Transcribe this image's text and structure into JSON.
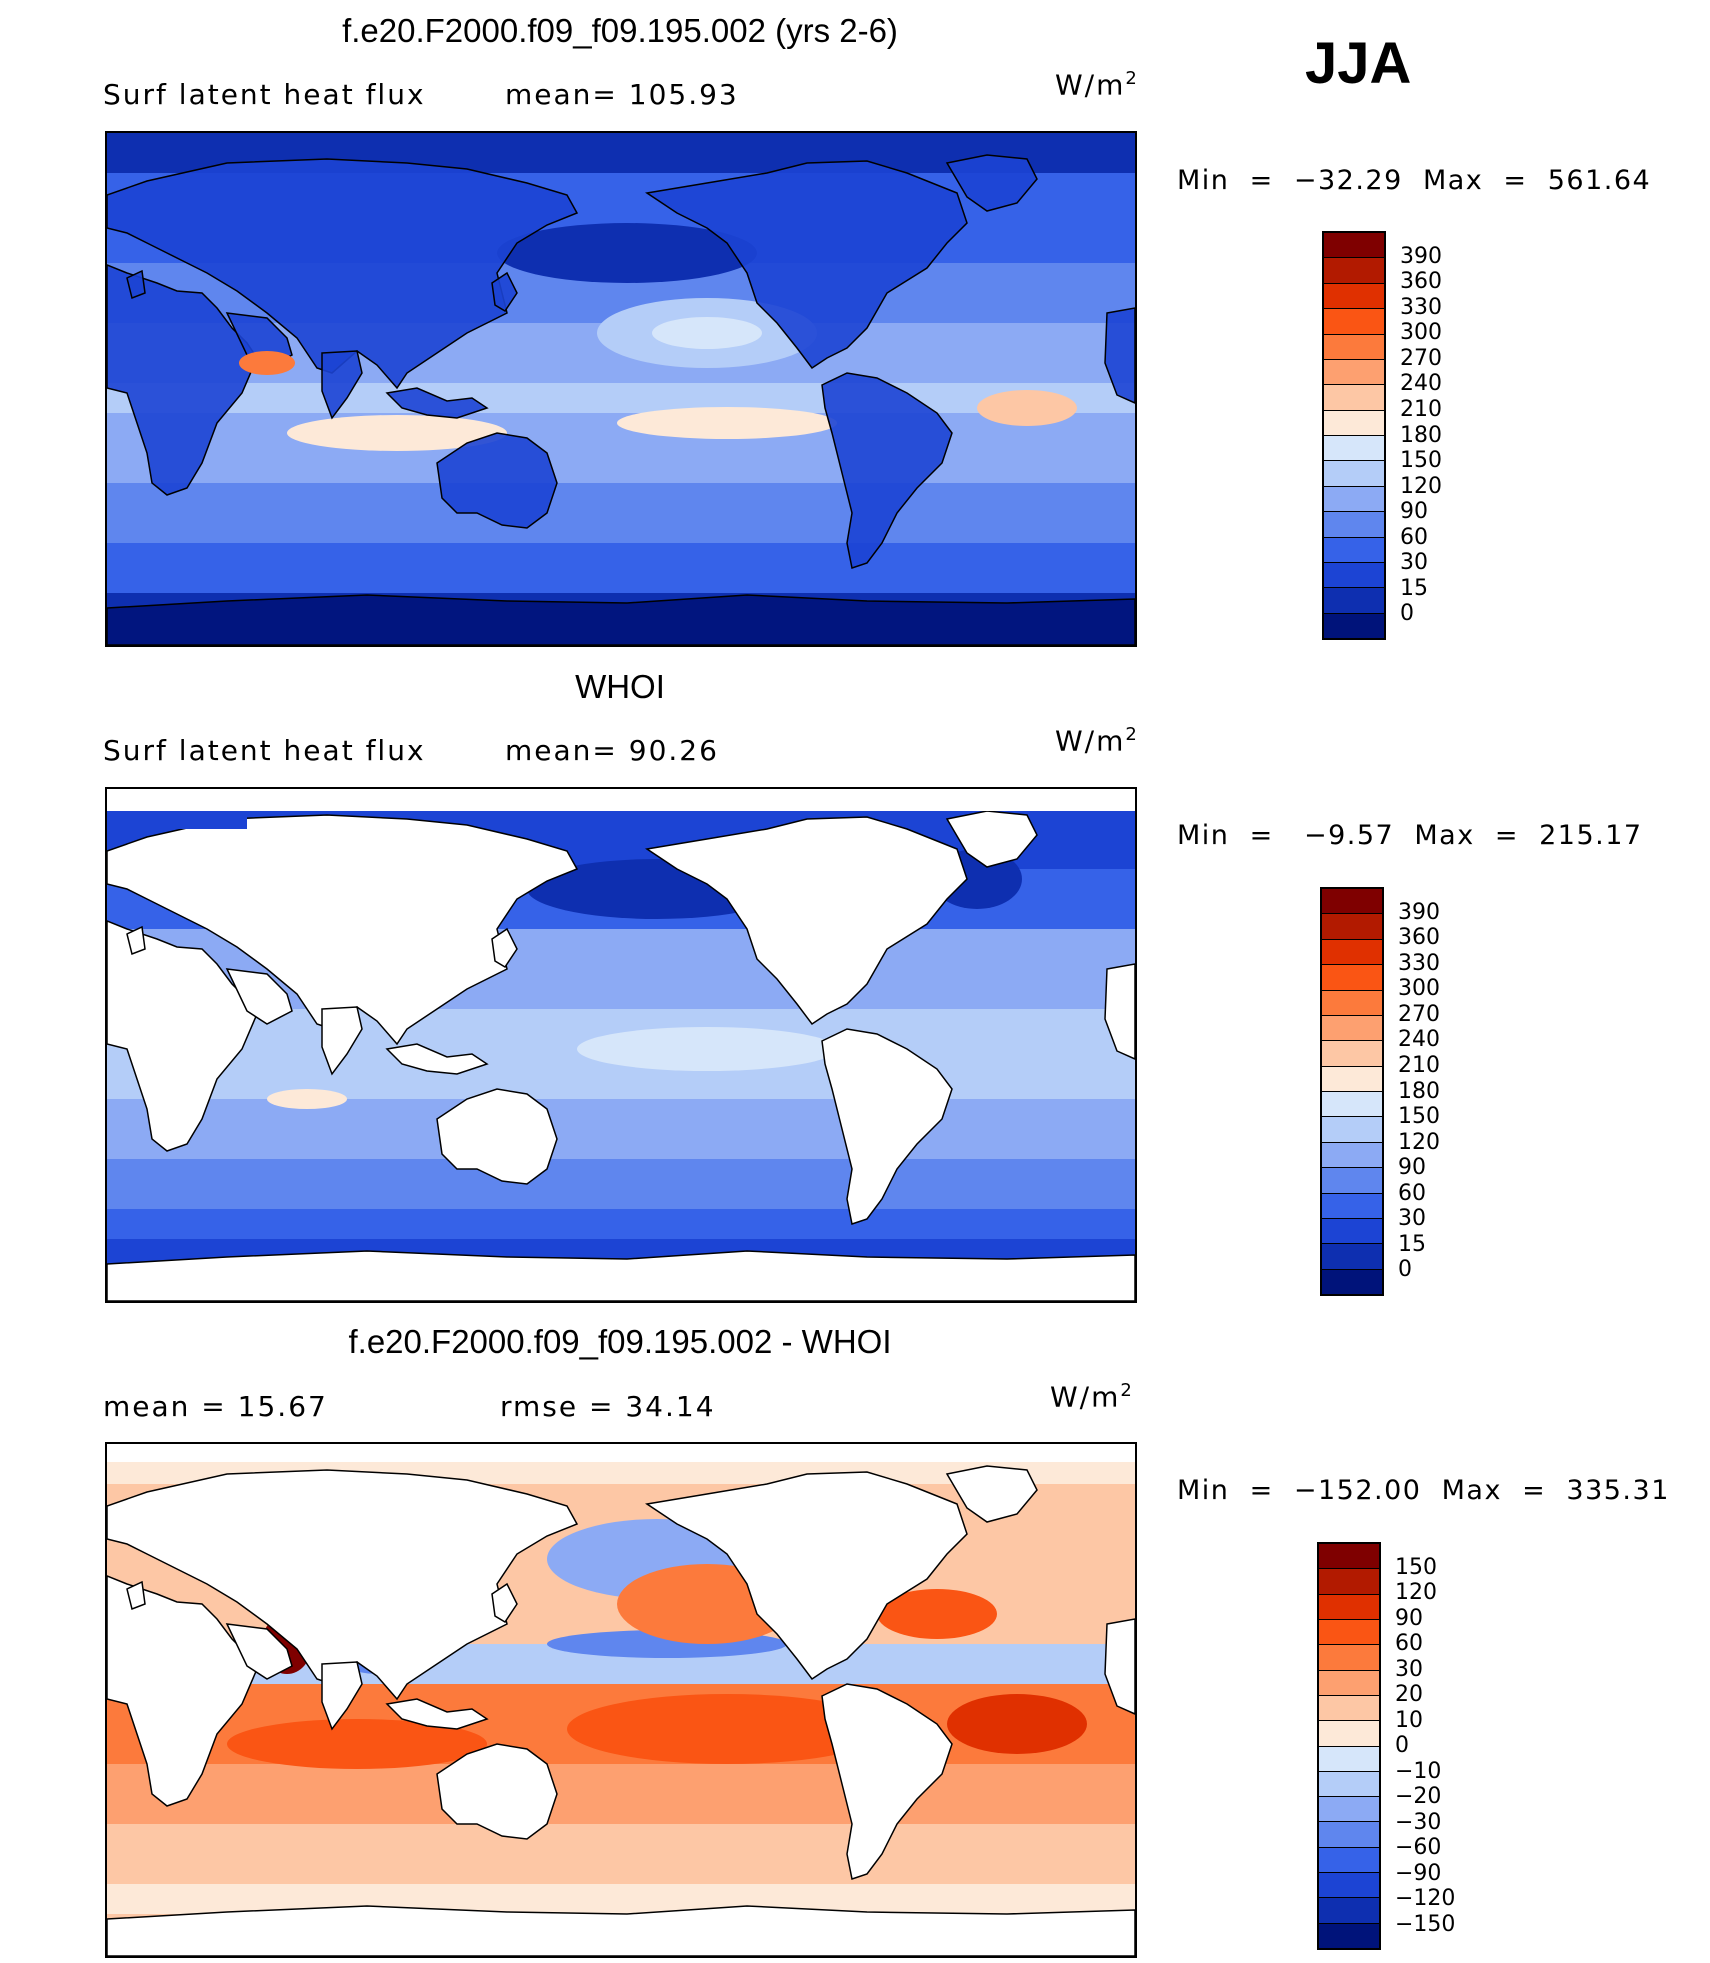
{
  "season": "JJA",
  "panels": [
    {
      "title": "f.e20.F2000.f09_f09.195.002 (yrs 2-6)",
      "subtitle_left": "Surf  latent  heat  flux",
      "subtitle_mid": "mean=  105.93",
      "units": "W/m",
      "units_exp": "2",
      "minmax": "Min  =  −32.29  Max  =  561.64",
      "kind": "model"
    },
    {
      "title": "WHOI",
      "subtitle_left": "Surf  latent  heat  flux",
      "subtitle_mid": "mean=   90.26",
      "units": "W/m",
      "units_exp": "2",
      "minmax": "Min  =   −9.57  Max  =  215.17",
      "kind": "obs"
    },
    {
      "title": "f.e20.F2000.f09_f09.195.002 - WHOI",
      "subtitle_left": "mean  =     15.67",
      "subtitle_mid": "rmse  =     34.14",
      "units": "W/m",
      "units_exp": "2",
      "minmax": "Min  =  −152.00  Max  =  335.31",
      "kind": "diff"
    }
  ],
  "colorbars": {
    "abs": {
      "labels": [
        "390",
        "360",
        "330",
        "300",
        "270",
        "240",
        "210",
        "180",
        "150",
        "120",
        "90",
        "60",
        "30",
        "15",
        "0"
      ],
      "colors": [
        "#7f0000",
        "#b21a00",
        "#e03000",
        "#fa5514",
        "#fc7a3c",
        "#fda070",
        "#fdc7a5",
        "#fde9d8",
        "#d6e6fa",
        "#b4cdf8",
        "#8caaf4",
        "#5f86ee",
        "#3662e8",
        "#1c44d4",
        "#0e2fb0",
        "#00137a"
      ]
    },
    "diff": {
      "labels": [
        "150",
        "120",
        "90",
        "60",
        "30",
        "20",
        "10",
        "0",
        "−10",
        "−20",
        "−30",
        "−60",
        "−90",
        "−120",
        "−150"
      ],
      "colors": [
        "#7f0000",
        "#b21a00",
        "#e03000",
        "#fa5514",
        "#fc7a3c",
        "#fda070",
        "#fdc7a5",
        "#fde9d8",
        "#d6e6fa",
        "#b4cdf8",
        "#8caaf4",
        "#5f86ee",
        "#3662e8",
        "#1c44d4",
        "#0e2fb0",
        "#00137a"
      ]
    }
  }
}
